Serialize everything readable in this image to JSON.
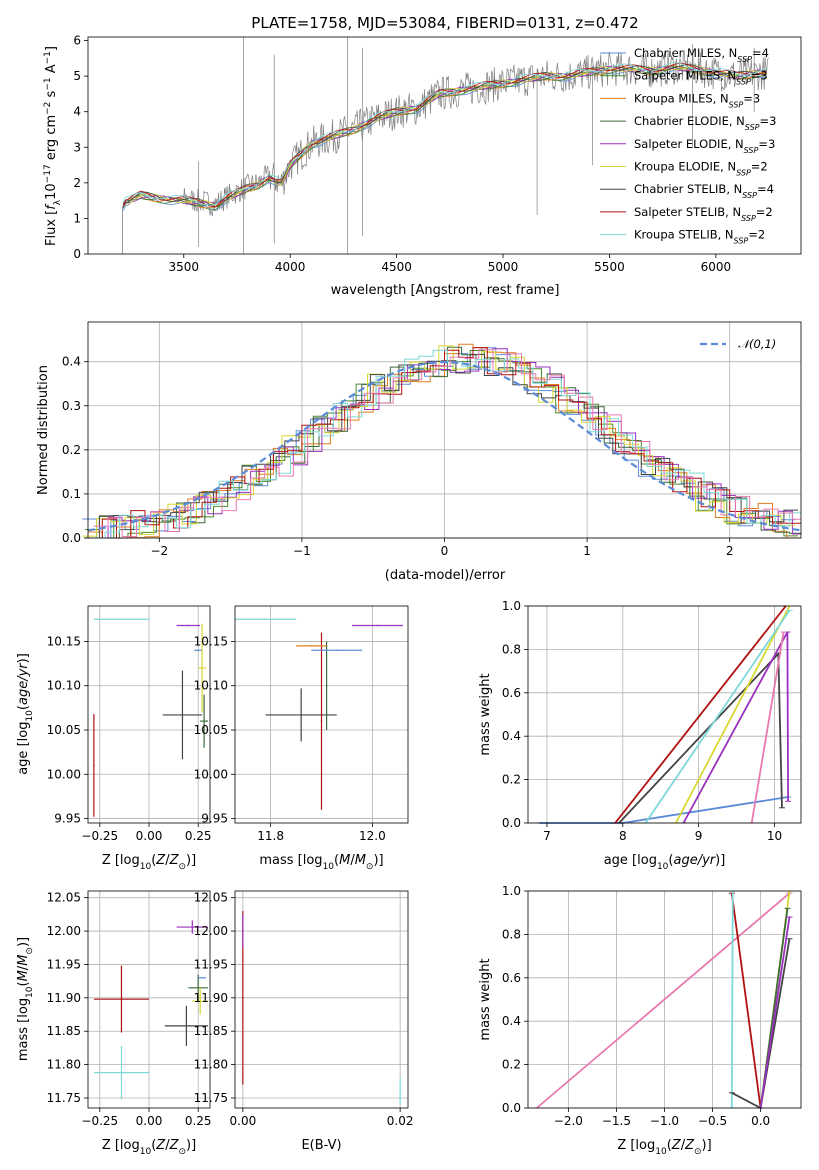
{
  "title": "PLATE=1758, MJD=53084, FIBERID=0131, z=0.472",
  "colors": {
    "Chabrier MILES": "#5b8bd8",
    "Salpeter MILES": "#4a8a2a",
    "Kroupa MILES": "#e07c20",
    "Chabrier ELODIE": "#3a6a3a",
    "Salpeter ELODIE": "#9b30c0",
    "Kroupa ELODIE": "#d8d830",
    "Chabrier STELIB": "#444444",
    "Salpeter STELIB": "#b01010",
    "Kroupa STELIB": "#7fd8d8",
    "data": "#808080",
    "normal": "#5b8bd8",
    "pink": "#e879b0"
  },
  "legend": [
    {
      "name": "Chabrier MILES",
      "label": "Chabrier MILES, N",
      "sub": "SSP",
      "val": "=4"
    },
    {
      "name": "Salpeter MILES",
      "label": "Salpeter MILES, N",
      "sub": "SSP",
      "val": "=3"
    },
    {
      "name": "Kroupa MILES",
      "label": "Kroupa MILES, N",
      "sub": "SSP",
      "val": "=3"
    },
    {
      "name": "Chabrier ELODIE",
      "label": "Chabrier ELODIE, N",
      "sub": "SSP",
      "val": "=3"
    },
    {
      "name": "Salpeter ELODIE",
      "label": "Salpeter ELODIE, N",
      "sub": "SSP",
      "val": "=3"
    },
    {
      "name": "Kroupa ELODIE",
      "label": "Kroupa ELODIE, N",
      "sub": "SSP",
      "val": "=2"
    },
    {
      "name": "Chabrier STELIB",
      "label": "Chabrier STELIB, N",
      "sub": "SSP",
      "val": "=4"
    },
    {
      "name": "Salpeter STELIB",
      "label": "Salpeter STELIB, N",
      "sub": "SSP",
      "val": "=2"
    },
    {
      "name": "Kroupa STELIB",
      "label": "Kroupa STELIB, N",
      "sub": "SSP",
      "val": "=2"
    }
  ],
  "chart_data": [
    {
      "type": "line",
      "panel": "spectrum",
      "xlabel": "wavelength [Angstrom, rest frame]",
      "ylabel": "Flux [f_λ 10^-17 erg cm^-2 s^-1 A^-1]",
      "xlim": [
        3050,
        6400
      ],
      "ylim": [
        0,
        6.1
      ],
      "xticks": [
        3500,
        4000,
        4500,
        5000,
        5500,
        6000
      ],
      "yticks": [
        0,
        1,
        2,
        3,
        4,
        5,
        6
      ],
      "continuum": {
        "x": [
          3210,
          3230,
          3300,
          3400,
          3500,
          3560,
          3650,
          3700,
          3800,
          3850,
          3900,
          3960,
          4000,
          4100,
          4200,
          4300,
          4400,
          4500,
          4600,
          4700,
          4800,
          4900,
          5000,
          5100,
          5200,
          5300,
          5400,
          5500,
          5600,
          5700,
          5800,
          5900,
          6000,
          6100,
          6200
        ],
        "y": [
          1.3,
          1.5,
          1.7,
          1.6,
          1.55,
          1.5,
          1.4,
          1.6,
          1.9,
          2.0,
          2.2,
          2.0,
          2.5,
          3.1,
          3.3,
          3.5,
          3.8,
          4.0,
          4.1,
          4.5,
          4.6,
          4.7,
          4.8,
          4.9,
          5.0,
          5.0,
          5.1,
          5.2,
          5.2,
          5.15,
          5.25,
          5.2,
          5.1,
          5.0,
          5.1
        ]
      }
    },
    {
      "type": "bar",
      "panel": "residual histogram",
      "xlabel": "(data-model)/error",
      "ylabel": "Normed distribution",
      "xlim": [
        -2.5,
        2.5
      ],
      "ylim": [
        0,
        0.49
      ],
      "xticks": [
        -2,
        -1,
        0,
        1,
        2
      ],
      "yticks": [
        0.0,
        0.1,
        0.2,
        0.3,
        0.4
      ],
      "reference": {
        "name": "𝒩(0,1)",
        "mu": 0,
        "sigma": 1
      }
    },
    {
      "type": "scatter",
      "panel": "age vs Z",
      "xlabel": "Z [log10(Z/Z⊙)]",
      "ylabel": "age [log10(age/yr)]",
      "xlim": [
        -0.31,
        0.31
      ],
      "ylim": [
        9.945,
        10.19
      ],
      "xticks": [
        -0.25,
        0.0,
        0.25
      ],
      "yticks": [
        9.95,
        10.0,
        10.05,
        10.1,
        10.15
      ],
      "points": [
        {
          "series": "Chabrier STELIB",
          "x": 0.17,
          "y": 10.067,
          "xerr": 0.1,
          "yerr": 0.05
        },
        {
          "series": "Chabrier ELODIE",
          "x": 0.28,
          "y": 10.06,
          "xerr": 0.02,
          "yerr": 0.03
        },
        {
          "series": "Salpeter STELIB",
          "x": -0.28,
          "y": 10.01,
          "xerr": 0.0,
          "yerr": 0.058
        },
        {
          "series": "Kroupa STELIB",
          "x": -0.14,
          "y": 10.175,
          "xerr": 0.14,
          "yerr": 0.0
        },
        {
          "series": "Salpeter ELODIE",
          "x": 0.2,
          "y": 10.168,
          "xerr": 0.06,
          "yerr": 0.0
        },
        {
          "series": "Chabrier MILES",
          "x": 0.25,
          "y": 10.14,
          "xerr": 0.02,
          "yerr": 0.0
        },
        {
          "series": "Kroupa ELODIE",
          "x": 0.27,
          "y": 10.12,
          "xerr": 0.02,
          "yerr": 0.05
        }
      ]
    },
    {
      "type": "scatter",
      "panel": "age vs mass",
      "xlabel": "mass [log10(M/M⊙)]",
      "xlim": [
        11.73,
        12.07
      ],
      "ylim": [
        9.945,
        10.19
      ],
      "xticks": [
        11.8,
        12.0
      ],
      "yticks": [
        9.95,
        10.0,
        10.05,
        10.1,
        10.15
      ],
      "points": [
        {
          "series": "Chabrier STELIB",
          "x": 11.86,
          "y": 10.067,
          "xerr": 0.07,
          "yerr": 0.03
        },
        {
          "series": "Chabrier ELODIE",
          "x": 11.91,
          "y": 10.1,
          "xerr": 0.0,
          "yerr": 0.05
        },
        {
          "series": "Salpeter STELIB",
          "x": 11.9,
          "y": 10.06,
          "xerr": 0.0,
          "yerr": 0.1
        },
        {
          "series": "Kroupa STELIB",
          "x": 11.79,
          "y": 10.175,
          "xerr": 0.06,
          "yerr": 0.0
        },
        {
          "series": "Salpeter ELODIE",
          "x": 12.01,
          "y": 10.168,
          "xerr": 0.05,
          "yerr": 0.0
        },
        {
          "series": "Chabrier MILES",
          "x": 11.93,
          "y": 10.14,
          "xerr": 0.05,
          "yerr": 0.0
        },
        {
          "series": "Kroupa MILES",
          "x": 11.88,
          "y": 10.145,
          "xerr": 0.03,
          "yerr": 0.0
        }
      ]
    },
    {
      "type": "line",
      "panel": "mass weight vs age",
      "xlabel": "age [log10(age/yr)]",
      "ylabel": "mass weight",
      "xlim": [
        6.75,
        10.35
      ],
      "ylim": [
        0,
        1.0
      ],
      "xticks": [
        7,
        8,
        9,
        10
      ],
      "yticks": [
        0.0,
        0.2,
        0.4,
        0.6,
        0.8,
        1.0
      ],
      "series": [
        {
          "name": "Chabrier MILES",
          "x": [
            6.9,
            8.0,
            10.18
          ],
          "y": [
            0.0,
            0.0,
            0.12
          ]
        },
        {
          "name": "Salpeter STELIB",
          "x": [
            7.9,
            10.15
          ],
          "y": [
            0.0,
            1.0
          ]
        },
        {
          "name": "Chabrier STELIB",
          "x": [
            7.95,
            10.05,
            10.1
          ],
          "y": [
            0.0,
            0.78,
            0.07
          ]
        },
        {
          "name": "Salpeter ELODIE",
          "x": [
            8.8,
            10.17,
            10.18
          ],
          "y": [
            0.0,
            0.88,
            0.1
          ]
        },
        {
          "name": "Kroupa ELODIE",
          "x": [
            8.7,
            10.2
          ],
          "y": [
            0.0,
            1.0
          ]
        },
        {
          "name": "Kroupa STELIB",
          "x": [
            8.3,
            10.2
          ],
          "y": [
            0.0,
            0.98
          ]
        },
        {
          "name": "pink",
          "x": [
            9.7,
            10.12
          ],
          "y": [
            0.0,
            0.88
          ]
        }
      ]
    },
    {
      "type": "scatter",
      "panel": "mass vs Z",
      "xlabel": "Z [log10(Z/Z⊙)]",
      "ylabel": "mass [log10(M/M⊙)]",
      "xlim": [
        -0.31,
        0.31
      ],
      "ylim": [
        11.735,
        12.06
      ],
      "xticks": [
        -0.25,
        0.0,
        0.25
      ],
      "yticks": [
        11.75,
        11.8,
        11.85,
        11.9,
        11.95,
        12.0,
        12.05
      ],
      "points": [
        {
          "series": "Chabrier STELIB",
          "x": 0.19,
          "y": 11.858,
          "xerr": 0.11,
          "yerr": 0.03
        },
        {
          "series": "Chabrier ELODIE",
          "x": 0.25,
          "y": 11.915,
          "xerr": 0.05,
          "yerr": 0.02
        },
        {
          "series": "Salpeter STELIB",
          "x": -0.14,
          "y": 11.898,
          "xerr": 0.14,
          "yerr": 0.05
        },
        {
          "series": "Kroupa STELIB",
          "x": -0.14,
          "y": 11.788,
          "xerr": 0.14,
          "yerr": 0.04
        },
        {
          "series": "Salpeter ELODIE",
          "x": 0.22,
          "y": 12.006,
          "xerr": 0.08,
          "yerr": 0.01
        },
        {
          "series": "Chabrier MILES",
          "x": 0.27,
          "y": 11.93,
          "xerr": 0.02,
          "yerr": 0.0
        },
        {
          "series": "Kroupa ELODIE",
          "x": 0.26,
          "y": 11.895,
          "xerr": 0.04,
          "yerr": 0.02
        }
      ]
    },
    {
      "type": "scatter",
      "panel": "mass vs E(B-V)",
      "xlabel": "E(B-V)",
      "xlim": [
        -0.001,
        0.021
      ],
      "ylim": [
        11.735,
        12.06
      ],
      "xticks": [
        0.0,
        0.02
      ],
      "yticks": [
        11.75,
        11.8,
        11.85,
        11.9,
        11.95,
        12.0,
        12.05
      ],
      "points": [
        {
          "series": "Salpeter STELIB",
          "x": 0.0,
          "y": 11.9,
          "xerr": 0.0,
          "yerr": 0.13
        },
        {
          "series": "Salpeter ELODIE",
          "x": 0.0,
          "y": 12.0,
          "xerr": 0.0,
          "yerr": 0.025
        },
        {
          "series": "Kroupa STELIB",
          "x": 0.02,
          "y": 11.76,
          "xerr": 0.0,
          "yerr": 0.02
        }
      ]
    },
    {
      "type": "line",
      "panel": "mass weight vs Z",
      "xlabel": "Z [log10(Z/Z⊙)]",
      "ylabel": "mass weight",
      "xlim": [
        -2.42,
        0.42
      ],
      "ylim": [
        0,
        1.0
      ],
      "xticks": [
        -2.0,
        -1.5,
        -1.0,
        -0.5,
        0.0
      ],
      "yticks": [
        0.0,
        0.2,
        0.4,
        0.6,
        0.8,
        1.0
      ],
      "series": [
        {
          "name": "pink",
          "x": [
            -2.33,
            0.3
          ],
          "y": [
            0.0,
            0.99
          ]
        },
        {
          "name": "Salpeter STELIB",
          "x": [
            -0.3,
            0.0
          ],
          "y": [
            0.99,
            0.0
          ]
        },
        {
          "name": "Kroupa STELIB",
          "x": [
            -0.3,
            -0.29
          ],
          "y": [
            0.0,
            1.0
          ]
        },
        {
          "name": "Chabrier STELIB",
          "x": [
            -0.3,
            0.0,
            0.3
          ],
          "y": [
            0.07,
            0.0,
            0.78
          ]
        },
        {
          "name": "Kroupa ELODIE",
          "x": [
            0.0,
            0.3
          ],
          "y": [
            0.0,
            1.0
          ]
        },
        {
          "name": "Chabrier ELODIE",
          "x": [
            0.0,
            0.28
          ],
          "y": [
            0.0,
            0.92
          ]
        },
        {
          "name": "Salpeter ELODIE",
          "x": [
            0.0,
            0.3
          ],
          "y": [
            0.0,
            0.88
          ]
        }
      ]
    }
  ]
}
